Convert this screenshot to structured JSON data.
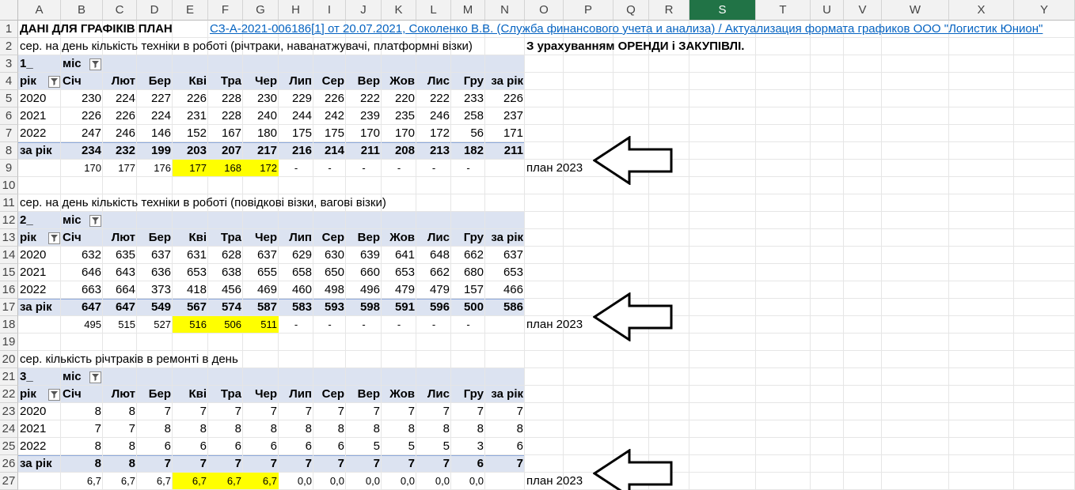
{
  "columns": [
    "A",
    "B",
    "C",
    "D",
    "E",
    "F",
    "G",
    "H",
    "I",
    "J",
    "K",
    "L",
    "M",
    "N",
    "O",
    "P",
    "Q",
    "R",
    "S",
    "T",
    "U",
    "V",
    "W",
    "X",
    "Y"
  ],
  "selected_column": "S",
  "rows": [
    "1",
    "2",
    "3",
    "4",
    "5",
    "6",
    "7",
    "8",
    "9",
    "10",
    "11",
    "12",
    "13",
    "14",
    "15",
    "16",
    "17",
    "18",
    "19",
    "20",
    "21",
    "22",
    "23",
    "24",
    "25",
    "26",
    "27"
  ],
  "row1": {
    "title": "ДАНІ ДЛЯ ГРАФІКІВ ПЛАН",
    "link": "СЗ-А-2021-006186[1] от 20.07.2021, Соколенко В.В. (Служба финансового учета и анализа) / Актуализация формата графиков ООО \"Логистик Юнион\""
  },
  "note": "З урахуванням ОРЕНДИ і ЗАКУПІВЛІ.",
  "plan_label": "план 2023",
  "headers": {
    "mis": "міс",
    "rik": "рік",
    "months": [
      "Січ",
      "Лют",
      "Бер",
      "Кві",
      "Тра",
      "Чер",
      "Лип",
      "Сер",
      "Вер",
      "Жов",
      "Лис",
      "Гру",
      "за рік"
    ],
    "total": "за рік"
  },
  "tables": [
    {
      "caption": "сер. на день кількість техніки в роботі (річтраки, наванатжувачі, платформні візки)",
      "id": "1_",
      "years": [
        {
          "year": "2020",
          "values": [
            "230",
            "224",
            "227",
            "226",
            "228",
            "230",
            "229",
            "226",
            "222",
            "220",
            "222",
            "233",
            "226"
          ]
        },
        {
          "year": "2021",
          "values": [
            "226",
            "226",
            "224",
            "231",
            "228",
            "240",
            "244",
            "242",
            "239",
            "235",
            "246",
            "258",
            "237"
          ]
        },
        {
          "year": "2022",
          "values": [
            "247",
            "246",
            "146",
            "152",
            "167",
            "180",
            "175",
            "175",
            "170",
            "170",
            "172",
            "56",
            "171"
          ]
        }
      ],
      "totals": [
        "234",
        "232",
        "199",
        "203",
        "207",
        "217",
        "216",
        "214",
        "211",
        "208",
        "213",
        "182",
        "211"
      ],
      "plan": [
        "170",
        "177",
        "176",
        "177",
        "168",
        "172",
        "-",
        "-",
        "-",
        "-",
        "-",
        "-"
      ]
    },
    {
      "caption": "сер. на день кількість техніки в роботі (повідкові візки, вагові візки)",
      "id": "2_",
      "years": [
        {
          "year": "2020",
          "values": [
            "632",
            "635",
            "637",
            "631",
            "628",
            "637",
            "629",
            "630",
            "639",
            "641",
            "648",
            "662",
            "637"
          ]
        },
        {
          "year": "2021",
          "values": [
            "646",
            "643",
            "636",
            "653",
            "638",
            "655",
            "658",
            "650",
            "660",
            "653",
            "662",
            "680",
            "653"
          ]
        },
        {
          "year": "2022",
          "values": [
            "663",
            "664",
            "373",
            "418",
            "456",
            "469",
            "460",
            "498",
            "496",
            "479",
            "479",
            "157",
            "466"
          ]
        }
      ],
      "totals": [
        "647",
        "647",
        "549",
        "567",
        "574",
        "587",
        "583",
        "593",
        "598",
        "591",
        "596",
        "500",
        "586"
      ],
      "plan": [
        "495",
        "515",
        "527",
        "516",
        "506",
        "511",
        "-",
        "-",
        "-",
        "-",
        "-",
        "-"
      ]
    },
    {
      "caption": "сер. кількість річтраків в ремонті в день",
      "id": "3_",
      "years": [
        {
          "year": "2020",
          "values": [
            "8",
            "8",
            "7",
            "7",
            "7",
            "7",
            "7",
            "7",
            "7",
            "7",
            "7",
            "7",
            "7"
          ]
        },
        {
          "year": "2021",
          "values": [
            "7",
            "7",
            "8",
            "8",
            "8",
            "8",
            "8",
            "8",
            "8",
            "8",
            "8",
            "8",
            "8"
          ]
        },
        {
          "year": "2022",
          "values": [
            "8",
            "8",
            "6",
            "6",
            "6",
            "6",
            "6",
            "6",
            "5",
            "5",
            "5",
            "3",
            "6"
          ]
        }
      ],
      "totals": [
        "8",
        "8",
        "7",
        "7",
        "7",
        "7",
        "7",
        "7",
        "7",
        "7",
        "7",
        "6",
        "7"
      ],
      "plan": [
        "6,7",
        "6,7",
        "6,7",
        "6,7",
        "6,7",
        "6,7",
        "0,0",
        "0,0",
        "0,0",
        "0,0",
        "0,0",
        "0,0"
      ]
    }
  ],
  "highlight_color": "#ffff00",
  "band_color": "#dce3f1",
  "selected_header_color": "#217346",
  "icons": {
    "filter": "filter-dropdown-icon",
    "arrow": "left-arrow-icon"
  }
}
